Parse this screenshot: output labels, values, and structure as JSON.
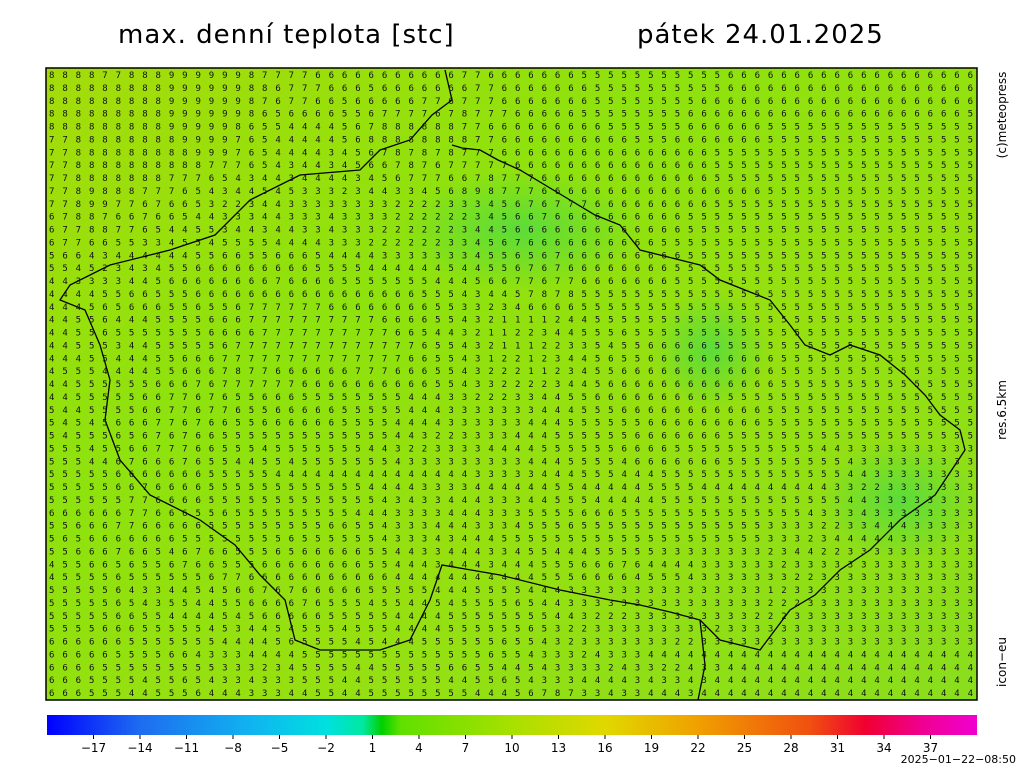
{
  "header": {
    "title": "max. denní teplota [stc]",
    "date": "pátek 24.01.2025"
  },
  "side": {
    "copyright": "(c)meteopress",
    "resolution": "res.6.5km",
    "model": "icon−eu"
  },
  "footer": {
    "timestamp": "2025−01−22−08:50"
  },
  "map": {
    "rows": [
      "8888778889999998777766666666666776666666555555555556666666666666666666",
      "8888888889999998867776665666666677666666655555555556666666666666666666",
      "8888888889999998767766566666776777666666655555555666666666666666666666",
      "8888888889999998656666556777767877766666555555556666666666666666666665",
      "8888888889999986554444567888888776666666665555556666665555555555555555",
      "7788888888999976544444568888888877666666666655566666665555555555555555",
      "7788888888899976544443456787878777666666666666666655555555555555555555",
      "7788888888887776543443456678767777766666666666666655555555555555555555",
      "7788888887776543443444434567776678777666666666666655555555555555555555",
      "7789888777654344545333234433456898777666666666666666665555555555555555",
      "7789977676653223443333333322223334567677766666666655555555555555555555",
      "6788766766544333443334333322222234566766666666665555555555555555555555",
      "6778877654455344344334333222222344566666666666665555555555555555555555",
      "6776655334554555544443332222223345676666666666555555555555555555555555",
      "5664344444455665566654444333333345565676666666665555555555555555555555",
      "5545234345566666666655554444445445567676666666655555555555555555555555",
      "4433334456666666676666555555544456677677666666655555555555555555555555",
      "4444556655566666666666666666555434457878555555555555555555555555555555",
      "4445656665565567777776666666655332346666555555555555555555555555555555",
      "4455644455556667777777777666655432111124455555555555555555555555555555",
      "4455655555556666777777777766544321122344555655555555555555555555555555",
      "4455534455555677777777777777655432111223354556666655555555555555555555",
      "4445544455666777777777777776655431221234456556666666666555555555555555",
      "4555444455666787766666677766655432221123455666666666666555555555555555",
      "4455555566676777777666666666655433222234456666666666666555555555555555",
      "4455555667767655666555555554443322233445566666666655555555555555555555",
      "5445555667767765566666555554443333333444555666666666665555555555555555",
      "5454566677676655666666555544443333334445555556666666665555555555555555",
      "5455565676766555555555555544322333344455555566666665555555555555555555",
      "5554556677766555455555554432233334444555555666655555555555443333333333",
      "5554467666765544554555555543333333334445555466666665555555554333333333",
      "5555566666665555544444444444444433333444555444555555555555554433333333",
      "5555566766665555555555554444333344444455444445555444444444433223333333",
      "5555557766665555555555555434334443334455544444555555555555554433333333",
      "6666667766655655555555544433334443335555666555555555555554333433333333",
      "5566677666665555555556655433344433345556555555555555553333223344433333",
      "5656666666555555556555555433343444555555555555555555553332344444333333",
      "5566676654676655565666665544334443345544455555333333332344223333333333",
      "4556656556766555666666665544434443444555666764444333333233333333333333",
      "4555565555556776666666666644444444444555666645554333333322333333333333",
      "5555564334454566767666665555544455554443333333333333331233333333333333",
      "5555565435544556666765554554454555565443333333333333332223333333333333",
      "5555566554444545666665555544445555555544322233333333322233333333333333",
      "5555666555554534454555455544445555556532233333333323333333333333333333",
      "6666665555555444456555545444555555655432333333322333333333333333333333",
      "6666655556643334444555555555555556554333243334444444444444444444444444",
      "6666555555555333234555544555556655445433332433224334444444444444444444",
      "6665555455654334333555445555554455654333444434334344444444444444444444",
      "6665554455564443334455445555555544456787334334443444444444444444444444"
    ]
  },
  "colorbar": {
    "lim": [
      -20,
      40
    ],
    "ticks": [
      {
        "value": -17,
        "label": "−17"
      },
      {
        "value": -14,
        "label": "−14"
      },
      {
        "value": -11,
        "label": "−11"
      },
      {
        "value": -8,
        "label": "−8"
      },
      {
        "value": -5,
        "label": "−5"
      },
      {
        "value": -2,
        "label": "−2"
      },
      1,
      4,
      7,
      10,
      13,
      16,
      19,
      22,
      25,
      28,
      31,
      34,
      37
    ]
  }
}
